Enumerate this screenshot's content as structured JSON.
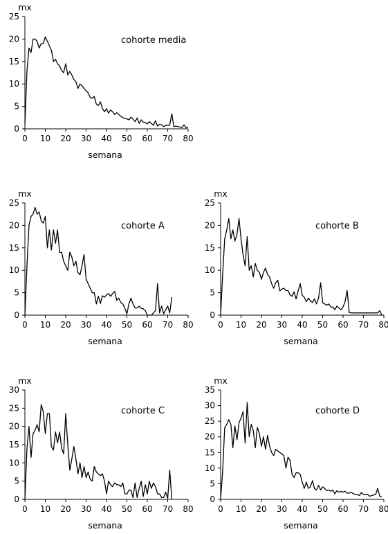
{
  "chart_data": [
    {
      "type": "line",
      "title": "cohorte media",
      "xlabel": "semana",
      "ylabel": "mx",
      "xlim": [
        0,
        80
      ],
      "ylim": [
        0,
        25
      ],
      "xticks": [
        "0",
        "10",
        "20",
        "30",
        "40",
        "50",
        "60",
        "70",
        "80"
      ],
      "yticks": [
        "0",
        "5",
        "10",
        "15",
        "20",
        "25"
      ],
      "series": [
        {
          "x": [
            0,
            1,
            2,
            3,
            4,
            5,
            6,
            7,
            8,
            9,
            10,
            11,
            12,
            13,
            14,
            15,
            16,
            17,
            18,
            19,
            20,
            21,
            22,
            23,
            24,
            25,
            26,
            27,
            28,
            29,
            30,
            31,
            32,
            33,
            34,
            35,
            36,
            37,
            38,
            39,
            40,
            41,
            42,
            43,
            44,
            45,
            46,
            47,
            48,
            49,
            50,
            51,
            52,
            53,
            54,
            55,
            56,
            57,
            58,
            59,
            60,
            61,
            62,
            63,
            64,
            65,
            66,
            67,
            68,
            69,
            70,
            71,
            72,
            73,
            74,
            75,
            76,
            77,
            78,
            79,
            80
          ],
          "y": [
            1,
            13,
            18,
            17,
            20,
            20,
            19.5,
            18,
            19,
            19,
            20.5,
            19.5,
            18.5,
            17.5,
            15,
            15.5,
            14.5,
            14,
            13,
            12.5,
            14.5,
            12,
            12.8,
            12,
            11,
            10.5,
            9,
            10,
            9.6,
            9,
            8.5,
            8,
            7,
            6.8,
            7.2,
            5.5,
            5.2,
            6,
            4.5,
            3.8,
            4.5,
            3.5,
            4.2,
            3.8,
            3.2,
            3.6,
            3.2,
            2.8,
            2.5,
            2.3,
            2.2,
            2,
            2.6,
            2.2,
            1.6,
            2.4,
            1.2,
            2,
            1.5,
            1.4,
            1.1,
            1.6,
            1.2,
            0.8,
            1.8,
            0.6,
            1,
            0.9,
            0.5,
            0.8,
            0.8,
            0.8,
            3.4,
            0.5,
            0.6,
            0.5,
            0.4,
            0.3,
            0.9,
            0.2,
            0.4
          ]
        }
      ]
    },
    {
      "type": "line",
      "title": "cohorte A",
      "xlabel": "semana",
      "ylabel": "mx",
      "xlim": [
        0,
        80
      ],
      "ylim": [
        0,
        25
      ],
      "xticks": [
        "0",
        "10",
        "20",
        "30",
        "40",
        "50",
        "60",
        "70",
        "80"
      ],
      "yticks": [
        "0",
        "5",
        "10",
        "15",
        "20",
        "25"
      ],
      "series": [
        {
          "x": [
            0,
            1,
            2,
            3,
            4,
            5,
            6,
            7,
            8,
            9,
            10,
            11,
            12,
            13,
            14,
            15,
            16,
            17,
            18,
            19,
            20,
            21,
            22,
            23,
            24,
            25,
            26,
            27,
            28,
            29,
            30,
            31,
            32,
            33,
            34,
            35,
            36,
            37,
            38,
            39,
            40,
            41,
            42,
            43,
            44,
            45,
            46,
            47,
            48,
            49,
            50,
            51,
            52,
            53,
            54,
            55,
            56,
            57,
            58,
            59,
            60,
            61,
            62,
            63,
            64,
            65,
            66,
            67,
            68,
            69,
            70,
            71,
            72
          ],
          "y": [
            0,
            11,
            20,
            22,
            22.5,
            24,
            22.5,
            23,
            21,
            20.5,
            22,
            15,
            19,
            14.5,
            19,
            16,
            19,
            14,
            14,
            12,
            11,
            10,
            14,
            13,
            11,
            12,
            9.5,
            9,
            11,
            13.5,
            8,
            7,
            6,
            5,
            5,
            2.5,
            4.2,
            2.6,
            4.3,
            4,
            4.5,
            4.8,
            4.2,
            4.8,
            5.3,
            3.3,
            3.8,
            2.8,
            2.5,
            1.5,
            0.3,
            2.5,
            3.8,
            2.5,
            1.6,
            1.6,
            2,
            1.5,
            1.4,
            1,
            0,
            0,
            0,
            0.5,
            1,
            7,
            0.5,
            2,
            0.3,
            1.2,
            2,
            0.5,
            4
          ]
        }
      ]
    },
    {
      "type": "line",
      "title": "cohorte B",
      "xlabel": "semana",
      "ylabel": "mx",
      "xlim": [
        0,
        80
      ],
      "ylim": [
        0,
        25
      ],
      "xticks": [
        "0",
        "10",
        "20",
        "30",
        "40",
        "50",
        "60",
        "70",
        "80"
      ],
      "yticks": [
        "0",
        "5",
        "10",
        "15",
        "20",
        "25"
      ],
      "series": [
        {
          "x": [
            0,
            1,
            2,
            3,
            4,
            5,
            6,
            7,
            8,
            9,
            10,
            11,
            12,
            13,
            14,
            15,
            16,
            17,
            18,
            19,
            20,
            21,
            22,
            23,
            24,
            25,
            26,
            27,
            28,
            29,
            30,
            31,
            32,
            33,
            34,
            35,
            36,
            37,
            38,
            39,
            40,
            41,
            42,
            43,
            44,
            45,
            46,
            47,
            48,
            49,
            50,
            51,
            52,
            53,
            54,
            55,
            56,
            57,
            58,
            59,
            60,
            61,
            62,
            63,
            64,
            65,
            66,
            67,
            68,
            69,
            70,
            71,
            72,
            73,
            74,
            75,
            76,
            77,
            78,
            79
          ],
          "y": [
            0,
            9,
            17,
            19,
            21.5,
            17,
            19,
            16.5,
            18,
            21.5,
            17,
            13.5,
            11,
            17.5,
            10,
            11,
            8.5,
            11.5,
            10,
            9.5,
            8,
            9.5,
            10.5,
            9,
            8.5,
            7,
            6,
            7.2,
            7.8,
            5.4,
            5.8,
            6,
            5.5,
            5.5,
            4.5,
            4.2,
            5.2,
            3.6,
            5.4,
            7,
            4.4,
            4,
            3,
            3.8,
            3.2,
            2.8,
            3.6,
            2.5,
            3.8,
            7.2,
            2.8,
            2.5,
            2.2,
            2.5,
            1.8,
            1.8,
            1.2,
            2,
            1.6,
            1.2,
            1.8,
            3,
            5.5,
            0.6,
            0.5,
            0.5,
            0.5,
            0.5,
            0.5,
            0.5,
            0.5,
            0.5,
            0.5,
            0.5,
            0.5,
            0.5,
            0.5,
            0.5,
            1,
            0
          ]
        }
      ]
    },
    {
      "type": "line",
      "title": "cohorte C",
      "xlabel": "semana",
      "ylabel": "mx",
      "xlim": [
        0,
        80
      ],
      "ylim": [
        0,
        30
      ],
      "xticks": [
        "0",
        "10",
        "20",
        "30",
        "40",
        "50",
        "60",
        "70",
        "80"
      ],
      "yticks": [
        "0",
        "5",
        "10",
        "15",
        "20",
        "25",
        "30"
      ],
      "series": [
        {
          "x": [
            0,
            1,
            2,
            3,
            4,
            5,
            6,
            7,
            8,
            9,
            10,
            11,
            12,
            13,
            14,
            15,
            16,
            17,
            18,
            19,
            20,
            21,
            22,
            23,
            24,
            25,
            26,
            27,
            28,
            29,
            30,
            31,
            32,
            33,
            34,
            35,
            36,
            37,
            38,
            39,
            40,
            41,
            42,
            43,
            44,
            45,
            46,
            47,
            48,
            49,
            50,
            51,
            52,
            53,
            54,
            55,
            56,
            57,
            58,
            59,
            60,
            61,
            62,
            63,
            64,
            65,
            66,
            67,
            68,
            69,
            70,
            71,
            72
          ],
          "y": [
            0,
            14,
            20,
            11.5,
            18,
            19,
            20.5,
            18.5,
            26,
            24,
            18,
            23.5,
            23.5,
            14.5,
            13.5,
            18.5,
            15.5,
            18.5,
            14,
            12.5,
            23.5,
            15,
            8,
            11,
            14.5,
            11,
            7,
            10,
            6,
            9,
            6,
            7.5,
            5.5,
            5,
            9,
            7.5,
            7,
            6.5,
            7,
            5,
            1.5,
            5,
            4,
            3.5,
            4.5,
            4,
            4,
            3.5,
            4.5,
            1.5,
            1.5,
            2.5,
            2.5,
            0.5,
            4.5,
            0.5,
            3,
            5,
            0.8,
            4,
            1.5,
            5,
            3,
            4.5,
            3.5,
            1.5,
            1.5,
            0.5,
            0.5,
            2,
            0.3,
            8,
            0
          ]
        }
      ]
    },
    {
      "type": "line",
      "title": "cohorte D",
      "xlabel": "semana",
      "ylabel": "mx",
      "xlim": [
        0,
        80
      ],
      "ylim": [
        0,
        35
      ],
      "xticks": [
        "0",
        "10",
        "20",
        "30",
        "40",
        "50",
        "60",
        "70",
        "80"
      ],
      "yticks": [
        "0",
        "5",
        "10",
        "15",
        "20",
        "25",
        "30",
        "35"
      ],
      "series": [
        {
          "x": [
            0,
            1,
            2,
            3,
            4,
            5,
            6,
            7,
            8,
            9,
            10,
            11,
            12,
            13,
            14,
            15,
            16,
            17,
            18,
            19,
            20,
            21,
            22,
            23,
            24,
            25,
            26,
            27,
            28,
            29,
            30,
            31,
            32,
            33,
            34,
            35,
            36,
            37,
            38,
            39,
            40,
            41,
            42,
            43,
            44,
            45,
            46,
            47,
            48,
            49,
            50,
            51,
            52,
            53,
            54,
            55,
            56,
            57,
            58,
            59,
            60,
            61,
            62,
            63,
            64,
            65,
            66,
            67,
            68,
            69,
            70,
            71,
            72,
            73,
            74,
            75,
            76,
            77,
            78,
            79
          ],
          "y": [
            0,
            9,
            23,
            24,
            25.5,
            24,
            16.5,
            23.5,
            19,
            24.5,
            26,
            28,
            18,
            31,
            20,
            24,
            22,
            16.5,
            23,
            21,
            17,
            20,
            16,
            20.5,
            17,
            15,
            14,
            16,
            15.5,
            15,
            14.5,
            14,
            10,
            13.5,
            12.5,
            8,
            7,
            8.5,
            8.5,
            8,
            5.5,
            3.5,
            5.5,
            3.5,
            4,
            6,
            3.5,
            3,
            4.5,
            3,
            4,
            3.5,
            2.8,
            3,
            2.6,
            3,
            1.8,
            2.8,
            2.3,
            2.6,
            2.3,
            2.6,
            2,
            2,
            2.3,
            1.8,
            1.6,
            1.6,
            1.2,
            2.2,
            1.6,
            1.6,
            1.6,
            1,
            1.2,
            1.4,
            1.6,
            3.5,
            1,
            0.8
          ]
        }
      ]
    }
  ]
}
